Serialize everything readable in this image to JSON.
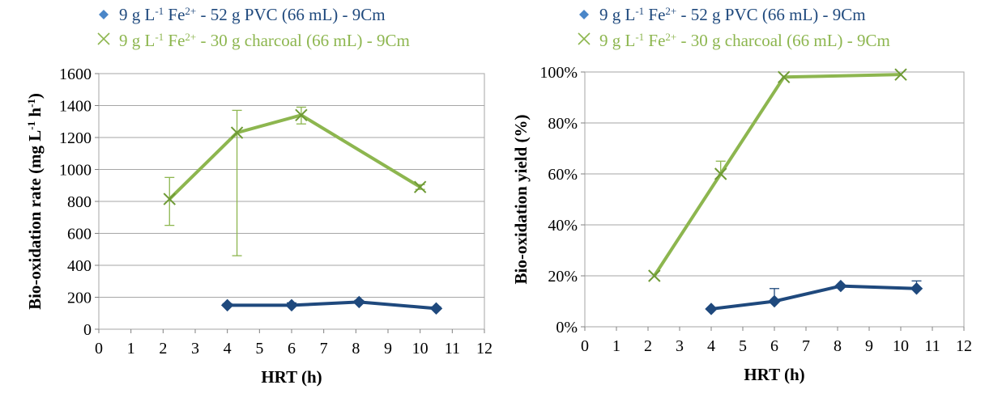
{
  "colors": {
    "pvc": "#1F497D",
    "pvc_marker": "#4A86C8",
    "charcoal": "#8DB64F",
    "grid": "#A6A6A6",
    "axis": "#808080"
  },
  "legend": [
    {
      "id": "pvc",
      "marker": "diamond-icon",
      "pre": "9 g L",
      "sup1": "-1",
      "mid": " Fe",
      "sup2": "2+",
      "post": " - 52 g PVC (66 mL) - 9Cm"
    },
    {
      "id": "charcoal",
      "marker": "cross-icon",
      "pre": "9 g L",
      "sup1": "-1",
      "mid": " Fe",
      "sup2": "2+",
      "post": " - 30 g charcoal (66 mL) - 9Cm"
    }
  ],
  "chart_data": [
    {
      "type": "line",
      "xlabel": "HRT (h)",
      "ylabel": {
        "main": "Bio-oxidation rate (mg L",
        "sup1": "-1",
        "mid": " h",
        "sup2": "-1",
        "end": ")"
      },
      "xlim": [
        0,
        12
      ],
      "ylim": [
        0,
        1600
      ],
      "xticks": [
        "0",
        "1",
        "2",
        "3",
        "4",
        "5",
        "6",
        "7",
        "8",
        "9",
        "10",
        "11",
        "12"
      ],
      "yticks": [
        "0",
        "200",
        "400",
        "600",
        "800",
        "1000",
        "1200",
        "1400",
        "1600"
      ],
      "grid": true,
      "series": [
        {
          "id": "pvc",
          "marker": "diamond",
          "x": [
            4.0,
            6.0,
            8.1,
            10.5
          ],
          "y": [
            150,
            150,
            170,
            130
          ],
          "err_low": [
            0,
            0,
            0,
            0
          ],
          "err_high": [
            10,
            15,
            10,
            10
          ]
        },
        {
          "id": "charcoal",
          "marker": "cross",
          "x": [
            2.2,
            4.3,
            6.3,
            10.0
          ],
          "y": [
            815,
            1230,
            1340,
            890
          ],
          "err_low": [
            165,
            770,
            55,
            15
          ],
          "err_high": [
            135,
            140,
            50,
            15
          ]
        }
      ]
    },
    {
      "type": "line",
      "xlabel": "HRT (h)",
      "ylabel": {
        "main": "Bio-oxidation yield (%)"
      },
      "xlim": [
        0,
        12
      ],
      "ylim": [
        0,
        100
      ],
      "xticks": [
        "0",
        "1",
        "2",
        "3",
        "4",
        "5",
        "6",
        "7",
        "8",
        "9",
        "10",
        "11",
        "12"
      ],
      "yticks": [
        "0%",
        "20%",
        "40%",
        "60%",
        "80%",
        "100%"
      ],
      "grid": true,
      "series": [
        {
          "id": "pvc",
          "marker": "diamond",
          "x": [
            4.0,
            6.0,
            8.1,
            10.5
          ],
          "y": [
            7,
            10,
            16,
            15
          ],
          "err_low": [
            0,
            0,
            0,
            0
          ],
          "err_high": [
            0,
            5,
            0,
            3
          ]
        },
        {
          "id": "charcoal",
          "marker": "cross",
          "x": [
            2.2,
            4.3,
            6.3,
            10.0
          ],
          "y": [
            20,
            60,
            98,
            99
          ],
          "err_low": [
            0,
            0,
            0,
            0
          ],
          "err_high": [
            0,
            5,
            0,
            0
          ]
        }
      ]
    }
  ]
}
